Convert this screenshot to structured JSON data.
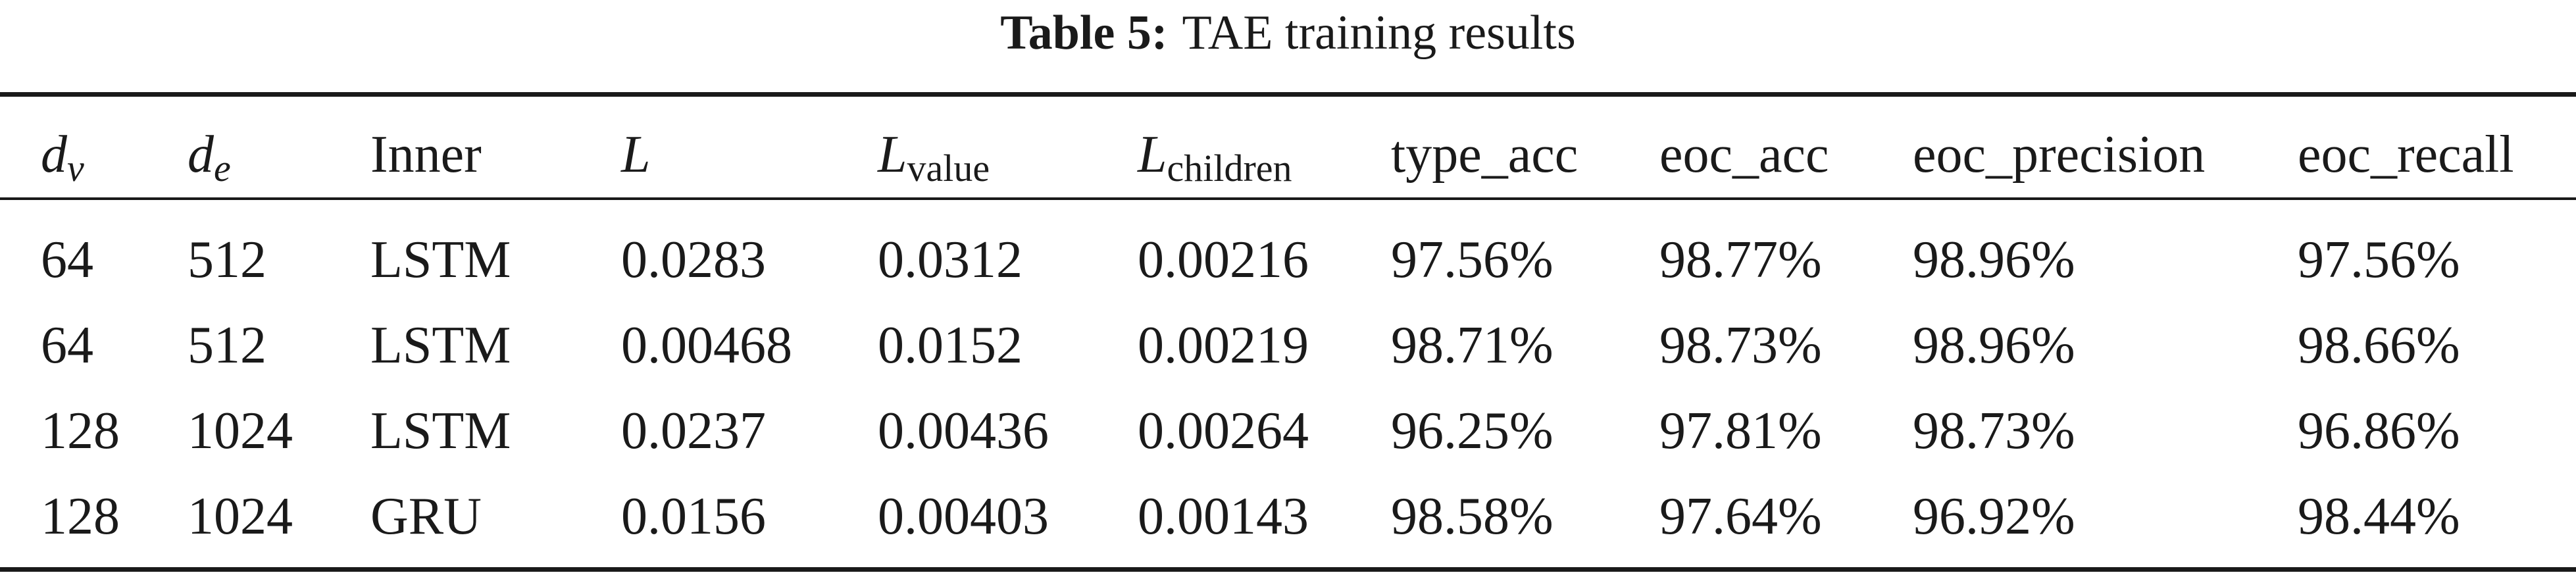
{
  "caption": {
    "label": "Table 5:",
    "text": "TAE training results"
  },
  "table": {
    "headers": {
      "dv": {
        "base": "d",
        "sub": "v"
      },
      "de": {
        "base": "d",
        "sub": "e"
      },
      "inner": "Inner",
      "L": "L",
      "L_value": {
        "base": "L",
        "sub": "value"
      },
      "L_children": {
        "base": "L",
        "sub": "children"
      },
      "type_acc": "type_acc",
      "eoc_acc": "eoc_acc",
      "eoc_precision": "eoc_precision",
      "eoc_recall": "eoc_recall"
    },
    "rows": [
      {
        "dv": "64",
        "de": "512",
        "inner": "LSTM",
        "L": "0.0283",
        "L_value": "0.0312",
        "L_children": "0.00216",
        "type_acc": "97.56%",
        "eoc_acc": "98.77%",
        "eoc_precision": "98.96%",
        "eoc_recall": "97.56%"
      },
      {
        "dv": "64",
        "de": "512",
        "inner": "LSTM",
        "L": "0.00468",
        "L_value": "0.0152",
        "L_children": "0.00219",
        "type_acc": "98.71%",
        "eoc_acc": "98.73%",
        "eoc_precision": "98.96%",
        "eoc_recall": "98.66%"
      },
      {
        "dv": "128",
        "de": "1024",
        "inner": "LSTM",
        "L": "0.0237",
        "L_value": "0.00436",
        "L_children": "0.00264",
        "type_acc": "96.25%",
        "eoc_acc": "97.81%",
        "eoc_precision": "98.73%",
        "eoc_recall": "96.86%"
      },
      {
        "dv": "128",
        "de": "1024",
        "inner": "GRU",
        "L": "0.0156",
        "L_value": "0.00403",
        "L_children": "0.00143",
        "type_acc": "98.58%",
        "eoc_acc": "97.64%",
        "eoc_precision": "96.92%",
        "eoc_recall": "98.44%"
      }
    ]
  }
}
